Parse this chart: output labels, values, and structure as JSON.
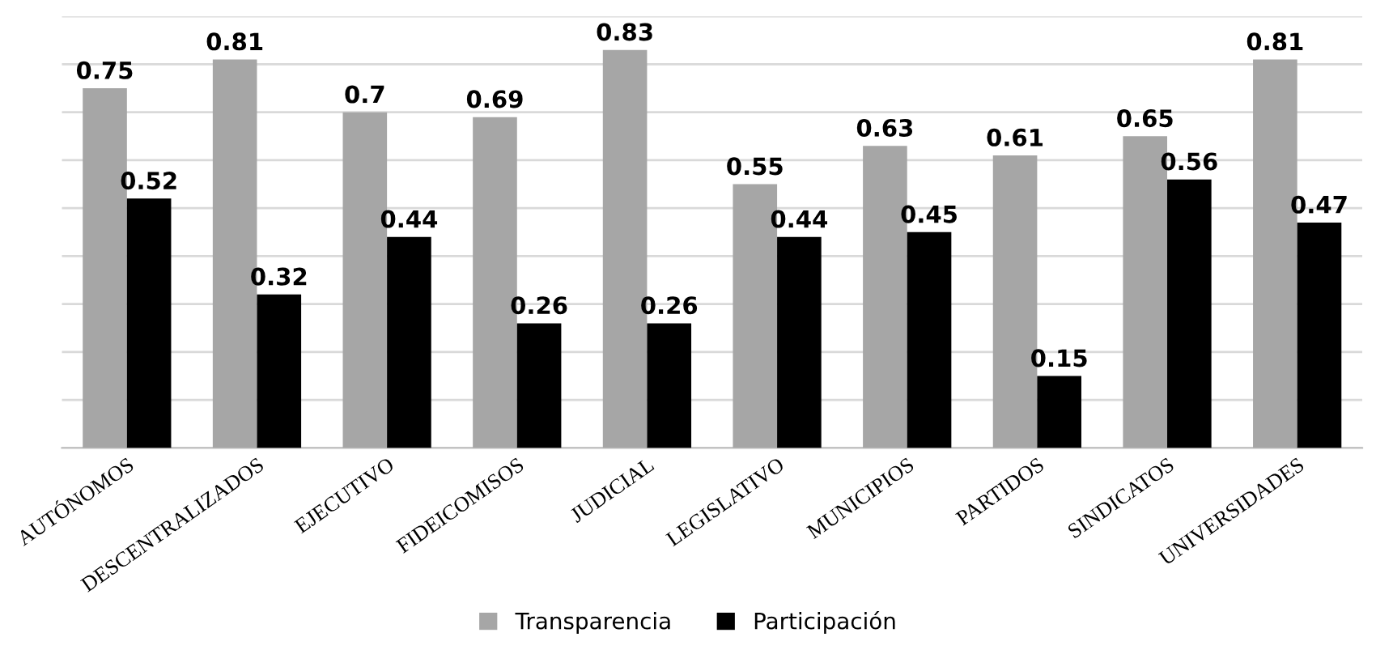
{
  "chart_data": {
    "type": "bar",
    "categories": [
      "AUTÓNOMOS",
      "DESCENTRALIZADOS",
      "EJECUTIVO",
      "FIDEICOMISOS",
      "JUDICIAL",
      "LEGISLATIVO",
      "MUNICIPIOS",
      "PARTIDOS",
      "SINDICATOS",
      "UNIVERSIDADES"
    ],
    "series": [
      {
        "name": "Transparencia",
        "color": "#a6a6a6",
        "values": [
          0.75,
          0.81,
          0.7,
          0.69,
          0.83,
          0.55,
          0.63,
          0.61,
          0.65,
          0.81
        ],
        "value_labels": [
          "0.75",
          "0.81",
          "0.7",
          "0.69",
          "0.83",
          "0.55",
          "0.63",
          "0.61",
          "0.65",
          "0.81"
        ]
      },
      {
        "name": "Participación",
        "color": "#000000",
        "values": [
          0.52,
          0.32,
          0.44,
          0.26,
          0.26,
          0.44,
          0.45,
          0.15,
          0.56,
          0.47
        ],
        "value_labels": [
          "0.52",
          "0.32",
          "0.44",
          "0.26",
          "0.26",
          "0.44",
          "0.45",
          "0.15",
          "0.56",
          "0.47"
        ]
      }
    ],
    "ylim": [
      0,
      0.9
    ],
    "yticks": [
      {
        "value": 0,
        "label": null
      },
      {
        "value": 0.1,
        "label": null
      },
      {
        "value": 0.2,
        "label": null
      },
      {
        "value": 0.3,
        "label": null
      },
      {
        "value": 0.4,
        "label": null
      },
      {
        "value": 0.5,
        "label": null
      },
      {
        "value": 0.6,
        "label": null
      },
      {
        "value": 0.7,
        "label": null
      },
      {
        "value": 0.8,
        "label": null
      },
      {
        "value": 0.9,
        "label": null
      }
    ],
    "grid": "y",
    "legend": "bottom"
  }
}
